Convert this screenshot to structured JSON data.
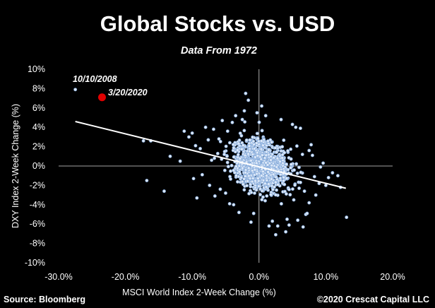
{
  "colors": {
    "background": "#000000",
    "text": "#ffffff",
    "point_fill": "#dce8f8",
    "point_stroke": "#7fa6d8",
    "trendline": "#ffffff",
    "highlight": "#e00000",
    "axis": "#d8d8d8"
  },
  "chart_data": {
    "type": "scatter",
    "title": "Global Stocks vs. USD",
    "subtitle": "Data From 1972",
    "xlabel": "MSCI World Index 2-Week Change (%)",
    "ylabel": "DXY Index 2-Week Change (%)",
    "xlim": [
      -0.3,
      0.2
    ],
    "ylim": [
      -0.1,
      0.1
    ],
    "x_ticks": [
      -0.3,
      -0.2,
      -0.1,
      0.0,
      0.1,
      0.2
    ],
    "x_tick_labels": [
      "-30.0%",
      "-20.0%",
      "-10.0%",
      "0.0%",
      "10.0%",
      "20.0%"
    ],
    "y_ticks": [
      0.1,
      0.08,
      0.06,
      0.04,
      0.02,
      0.0,
      -0.02,
      -0.04,
      -0.06,
      -0.08,
      -0.1
    ],
    "y_tick_labels": [
      "10%",
      "8%",
      "6%",
      "4%",
      "2%",
      "0%",
      "-2%",
      "-4%",
      "-6%",
      "-8%",
      "-10%"
    ],
    "grid": false,
    "legend": "none",
    "trendline": {
      "x": [
        -0.275,
        0.13
      ],
      "y": [
        0.046,
        -0.023
      ]
    },
    "annotations": [
      {
        "text": "10/10/2008",
        "x": -0.275,
        "y": 0.079,
        "point": "sample"
      },
      {
        "text": "3/20/2020",
        "x": -0.235,
        "y": 0.071,
        "point": "highlight"
      }
    ],
    "cluster": {
      "approx_count": 1200,
      "x_center": 0.002,
      "x_spread": 0.032,
      "y_center": 0.001,
      "y_spread": 0.014
    },
    "series": [
      {
        "points": [
          [
            -0.275,
            0.079
          ],
          [
            -0.173,
            0.026
          ],
          [
            -0.162,
            0.026
          ],
          [
            -0.168,
            -0.015
          ],
          [
            -0.142,
            -0.026
          ],
          [
            -0.133,
            0.01
          ],
          [
            -0.118,
            0.005
          ],
          [
            -0.112,
            0.036
          ],
          [
            -0.105,
            0.03
          ],
          [
            -0.1,
            0.034
          ],
          [
            -0.098,
            -0.013
          ],
          [
            -0.093,
            -0.033
          ],
          [
            -0.095,
            0.021
          ],
          [
            -0.088,
            0.018
          ],
          [
            -0.085,
            -0.009
          ],
          [
            -0.08,
            0.04
          ],
          [
            -0.076,
            0.027
          ],
          [
            -0.074,
            -0.02
          ],
          [
            -0.071,
            0.006
          ],
          [
            -0.068,
            0.038
          ],
          [
            -0.066,
            -0.031
          ],
          [
            -0.06,
            0.028
          ],
          [
            -0.058,
            -0.024
          ],
          [
            -0.055,
            0.047
          ],
          [
            -0.052,
            0.012
          ],
          [
            -0.05,
            -0.028
          ],
          [
            -0.047,
            0.036
          ],
          [
            -0.044,
            -0.039
          ],
          [
            -0.04,
            0.045
          ],
          [
            -0.038,
            -0.04
          ],
          [
            -0.035,
            0.052
          ],
          [
            -0.03,
            -0.048
          ],
          [
            -0.025,
            0.048
          ],
          [
            -0.022,
            0.057
          ],
          [
            -0.02,
            0.075
          ],
          [
            -0.016,
            0.068
          ],
          [
            -0.012,
            -0.058
          ],
          [
            -0.008,
            -0.049
          ],
          [
            -0.003,
            0.055
          ],
          [
            0.004,
            0.062
          ],
          [
            0.01,
            0.052
          ],
          [
            0.015,
            -0.062
          ],
          [
            0.02,
            -0.057
          ],
          [
            0.025,
            -0.071
          ],
          [
            0.028,
            -0.062
          ],
          [
            0.033,
            0.048
          ],
          [
            0.04,
            -0.068
          ],
          [
            0.042,
            -0.055
          ],
          [
            0.045,
            -0.061
          ],
          [
            0.05,
            0.043
          ],
          [
            0.055,
            0.04
          ],
          [
            0.058,
            -0.056
          ],
          [
            0.062,
            0.039
          ],
          [
            0.066,
            -0.063
          ],
          [
            0.07,
            -0.05
          ],
          [
            0.072,
            -0.049
          ],
          [
            0.075,
            -0.038
          ],
          [
            0.08,
            0.011
          ],
          [
            0.083,
            -0.011
          ],
          [
            0.09,
            -0.018
          ],
          [
            0.092,
            -0.001
          ],
          [
            0.096,
            0.003
          ],
          [
            0.1,
            -0.02
          ],
          [
            0.104,
            -0.012
          ],
          [
            0.11,
            -0.007
          ],
          [
            0.118,
            -0.01
          ],
          [
            0.122,
            -0.022
          ],
          [
            0.131,
            -0.053
          ],
          [
            0.06,
            -0.023
          ],
          [
            0.052,
            -0.035
          ],
          [
            0.065,
            0.012
          ],
          [
            0.068,
            -0.026
          ],
          [
            0.075,
            0.016
          ],
          [
            0.062,
            -0.017
          ],
          [
            0.085,
            -0.03
          ],
          [
            0.078,
            0.022
          ]
        ]
      }
    ],
    "highlight_point": {
      "x": -0.235,
      "y": 0.071
    }
  },
  "footer": {
    "source": "Source: Bloomberg",
    "copyright": "©2020 Crescat Capital LLC"
  }
}
